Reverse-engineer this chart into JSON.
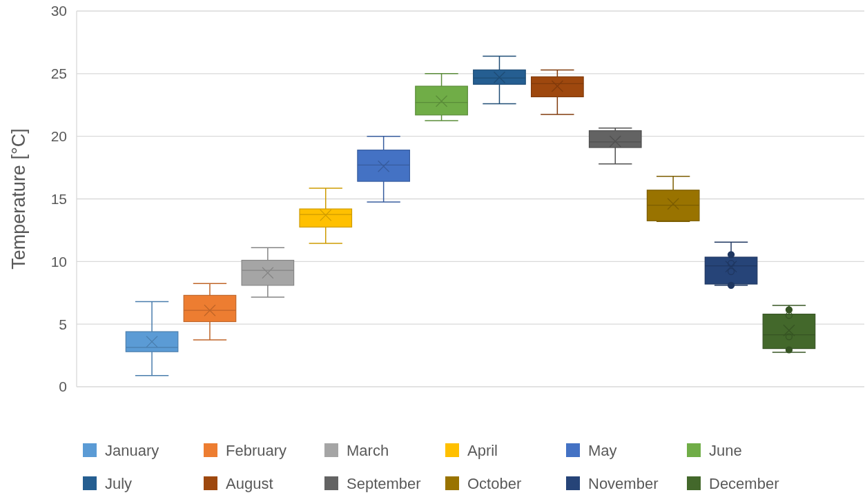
{
  "chart_data": {
    "type": "box",
    "ylabel": "Temperature [°C]",
    "categories": [
      null
    ],
    "ylim": [
      0,
      30
    ],
    "yticks": [
      0,
      5,
      10,
      15,
      20,
      25,
      30
    ],
    "grid": "y",
    "legend": "bottom",
    "marker": "cross",
    "series": [
      {
        "name": "January",
        "color": "#5b9bd5",
        "boxes": [
          {
            "low": 0.9,
            "q1": 2.8,
            "median": 3.15,
            "q3": 4.4,
            "high": 6.8,
            "mean": 3.6
          }
        ]
      },
      {
        "name": "February",
        "color": "#ed7d31",
        "boxes": [
          {
            "low": 3.75,
            "q1": 5.2,
            "median": 6.1,
            "q3": 7.3,
            "high": 8.25,
            "mean": 6.1
          }
        ]
      },
      {
        "name": "March",
        "color": "#a5a5a5",
        "boxes": [
          {
            "low": 7.15,
            "q1": 8.1,
            "median": 9.3,
            "q3": 10.1,
            "high": 11.1,
            "mean": 9.1
          }
        ]
      },
      {
        "name": "April",
        "color": "#ffc000",
        "boxes": [
          {
            "low": 11.45,
            "q1": 12.75,
            "median": 13.75,
            "q3": 14.2,
            "high": 15.85,
            "mean": 13.7
          }
        ]
      },
      {
        "name": "May",
        "color": "#4472c4",
        "boxes": [
          {
            "low": 14.75,
            "q1": 16.4,
            "median": 17.7,
            "q3": 18.9,
            "high": 20.0,
            "mean": 17.6
          }
        ]
      },
      {
        "name": "June",
        "color": "#70ad47",
        "boxes": [
          {
            "low": 21.25,
            "q1": 21.7,
            "median": 22.7,
            "q3": 24.0,
            "high": 25.0,
            "mean": 22.8
          }
        ]
      },
      {
        "name": "July",
        "color": "#255e91",
        "boxes": [
          {
            "low": 22.6,
            "q1": 24.15,
            "median": 24.65,
            "q3": 25.3,
            "high": 26.4,
            "mean": 24.7
          }
        ]
      },
      {
        "name": "August",
        "color": "#9e480e",
        "boxes": [
          {
            "low": 21.75,
            "q1": 23.15,
            "median": 24.2,
            "q3": 24.75,
            "high": 25.3,
            "mean": 24.0
          }
        ]
      },
      {
        "name": "September",
        "color": "#636363",
        "boxes": [
          {
            "low": 17.8,
            "q1": 19.1,
            "median": 19.55,
            "q3": 20.45,
            "high": 20.65,
            "mean": 19.6
          }
        ]
      },
      {
        "name": "October",
        "color": "#997300",
        "boxes": [
          {
            "low": 13.2,
            "q1": 13.25,
            "median": 14.5,
            "q3": 15.7,
            "high": 16.8,
            "mean": 14.6
          }
        ]
      },
      {
        "name": "November",
        "color": "#264478",
        "boxes": [
          {
            "low": 8.1,
            "q1": 8.2,
            "median": 9.65,
            "q3": 10.35,
            "high": 11.55,
            "mean": 9.6,
            "outliers": [
              10.55,
              9.85,
              9.2,
              8.1
            ]
          }
        ]
      },
      {
        "name": "December",
        "color": "#43682b",
        "boxes": [
          {
            "low": 2.75,
            "q1": 3.05,
            "median": 4.15,
            "q3": 5.8,
            "high": 6.5,
            "mean": 4.5,
            "outliers": [
              6.15,
              5.7,
              4.0,
              2.95
            ]
          }
        ]
      }
    ]
  }
}
